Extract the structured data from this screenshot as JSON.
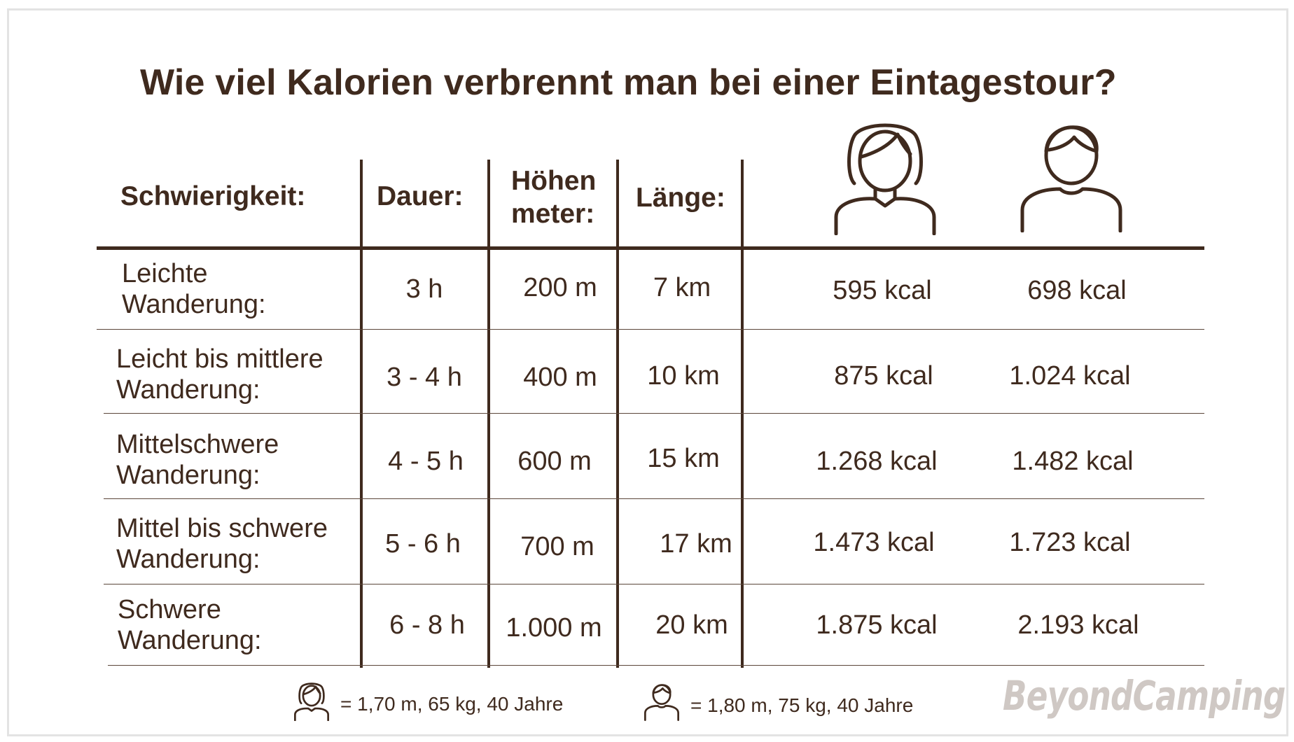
{
  "title": "Wie viel Kalorien verbrennt man bei einer Eintagestour?",
  "headers": {
    "difficulty": "Schwierigkeit:",
    "duration": "Dauer:",
    "elevation_line1": "Höhen",
    "elevation_line2": "meter:",
    "length": "Länge:"
  },
  "icons": {
    "female": "woman-icon",
    "male": "man-icon"
  },
  "rows": [
    {
      "difficulty_line1": "Leichte",
      "difficulty_line2": "Wanderung:",
      "duration": "3 h",
      "elevation": "200 m",
      "length": "7 km",
      "female_kcal": "595 kcal",
      "male_kcal": "698 kcal"
    },
    {
      "difficulty_line1": "Leicht bis mittlere",
      "difficulty_line2": "Wanderung:",
      "duration": "3 - 4 h",
      "elevation": "400 m",
      "length": "10 km",
      "female_kcal": "875 kcal",
      "male_kcal": "1.024 kcal"
    },
    {
      "difficulty_line1": "Mittelschwere",
      "difficulty_line2": "Wanderung:",
      "duration": "4 - 5 h",
      "elevation": "600 m",
      "length": "15 km",
      "female_kcal": "1.268 kcal",
      "male_kcal": "1.482 kcal"
    },
    {
      "difficulty_line1": "Mittel bis schwere",
      "difficulty_line2": "Wanderung:",
      "duration": "5 - 6 h",
      "elevation": "700 m",
      "length": "17 km",
      "female_kcal": "1.473 kcal",
      "male_kcal": "1.723 kcal"
    },
    {
      "difficulty_line1": "Schwere",
      "difficulty_line2": "Wanderung:",
      "duration": "6 - 8 h",
      "elevation": "1.000 m",
      "length": "20 km",
      "female_kcal": "1.875 kcal",
      "male_kcal": "2.193 kcal"
    }
  ],
  "legend": {
    "female": "= 1,70 m, 65 kg, 40 Jahre",
    "male": "= 1,80 m, 75 kg, 40 Jahre"
  },
  "brand": "BeyondCamping",
  "colors": {
    "text": "#3f2a1e",
    "brand": "#cfc8c4",
    "frame": "#e3e3e3"
  }
}
